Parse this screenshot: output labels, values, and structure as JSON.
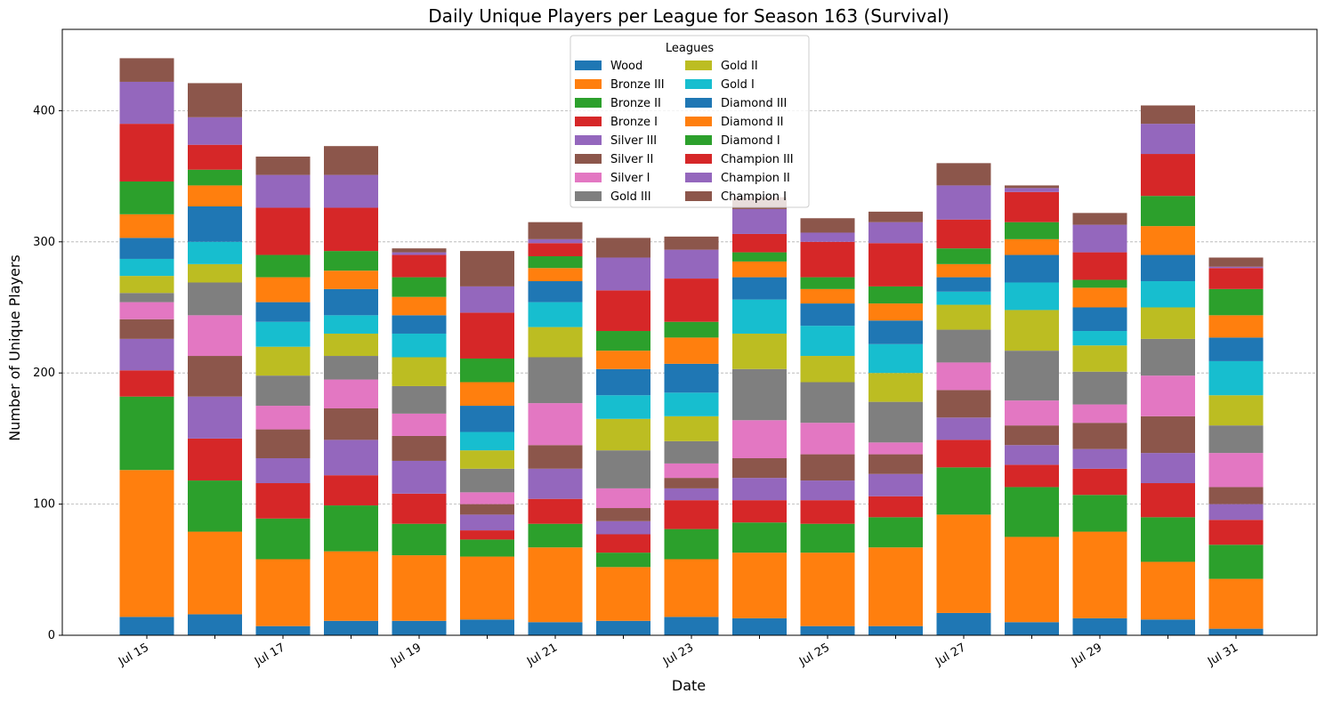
{
  "chart_data": {
    "type": "bar",
    "stacked": true,
    "title": "Daily Unique Players per League for Season 163 (Survival)",
    "xlabel": "Date",
    "ylabel": "Number of Unique Players",
    "ylim": [
      0,
      462
    ],
    "yticks": [
      0,
      100,
      200,
      300,
      400
    ],
    "grid": "y",
    "legend": {
      "title": "Leagues",
      "placement": "top-center",
      "columns": 2
    },
    "categories": [
      "Jul 15",
      "Jul 16",
      "Jul 17",
      "Jul 18",
      "Jul 19",
      "Jul 20",
      "Jul 21",
      "Jul 22",
      "Jul 23",
      "Jul 24",
      "Jul 25",
      "Jul 26",
      "Jul 27",
      "Jul 28",
      "Jul 29",
      "Jul 30",
      "Jul 31"
    ],
    "xtick_labels": [
      "Jul 15",
      "",
      "Jul 17",
      "",
      "Jul 19",
      "",
      "Jul 21",
      "",
      "Jul 23",
      "",
      "Jul 25",
      "",
      "Jul 27",
      "",
      "Jul 29",
      "",
      "Jul 31"
    ],
    "series": [
      {
        "name": "Wood",
        "color": "#1f77b4",
        "values": [
          14,
          16,
          7,
          11,
          11,
          12,
          10,
          11,
          14,
          13,
          7,
          7,
          17,
          10,
          13,
          12,
          5
        ]
      },
      {
        "name": "Bronze III",
        "color": "#ff7f0e",
        "values": [
          112,
          63,
          51,
          53,
          50,
          48,
          57,
          41,
          44,
          50,
          56,
          60,
          75,
          65,
          66,
          44,
          38
        ]
      },
      {
        "name": "Bronze II",
        "color": "#2ca02c",
        "values": [
          56,
          39,
          31,
          35,
          24,
          13,
          18,
          11,
          23,
          23,
          22,
          23,
          36,
          38,
          28,
          34,
          26
        ]
      },
      {
        "name": "Bronze I",
        "color": "#d62728",
        "values": [
          20,
          32,
          27,
          23,
          23,
          7,
          19,
          14,
          22,
          17,
          18,
          16,
          21,
          17,
          20,
          26,
          19
        ]
      },
      {
        "name": "Silver III",
        "color": "#9467bd",
        "values": [
          24,
          32,
          19,
          27,
          25,
          12,
          23,
          10,
          9,
          17,
          15,
          17,
          17,
          15,
          15,
          23,
          12
        ]
      },
      {
        "name": "Silver II",
        "color": "#8c564b",
        "values": [
          15,
          31,
          22,
          24,
          19,
          8,
          18,
          10,
          8,
          15,
          20,
          15,
          21,
          15,
          20,
          28,
          13
        ]
      },
      {
        "name": "Silver I",
        "color": "#e377c2",
        "values": [
          13,
          31,
          18,
          22,
          17,
          9,
          32,
          15,
          11,
          29,
          24,
          9,
          21,
          19,
          14,
          31,
          26
        ]
      },
      {
        "name": "Gold III",
        "color": "#7f7f7f",
        "values": [
          7,
          25,
          23,
          18,
          21,
          18,
          35,
          29,
          17,
          39,
          31,
          31,
          25,
          38,
          25,
          28,
          21
        ]
      },
      {
        "name": "Gold II",
        "color": "#bcbd22",
        "values": [
          13,
          14,
          22,
          17,
          22,
          14,
          23,
          24,
          19,
          27,
          20,
          22,
          19,
          31,
          20,
          24,
          23
        ]
      },
      {
        "name": "Gold I",
        "color": "#17becf",
        "values": [
          13,
          17,
          19,
          14,
          18,
          14,
          19,
          18,
          18,
          26,
          23,
          22,
          10,
          21,
          11,
          20,
          26
        ]
      },
      {
        "name": "Diamond III",
        "color": "#1f77b4",
        "values": [
          16,
          27,
          15,
          20,
          14,
          20,
          16,
          20,
          22,
          17,
          17,
          18,
          11,
          21,
          18,
          20,
          18
        ]
      },
      {
        "name": "Diamond II",
        "color": "#ff7f0e",
        "values": [
          18,
          16,
          19,
          14,
          14,
          18,
          10,
          14,
          20,
          12,
          11,
          13,
          10,
          12,
          15,
          22,
          17
        ]
      },
      {
        "name": "Diamond I",
        "color": "#2ca02c",
        "values": [
          25,
          12,
          17,
          15,
          15,
          18,
          9,
          15,
          12,
          7,
          9,
          13,
          12,
          13,
          6,
          23,
          20
        ]
      },
      {
        "name": "Champion III",
        "color": "#d62728",
        "values": [
          44,
          19,
          36,
          33,
          17,
          35,
          10,
          31,
          33,
          14,
          27,
          33,
          22,
          23,
          21,
          32,
          16
        ]
      },
      {
        "name": "Champion II",
        "color": "#9467bd",
        "values": [
          32,
          21,
          25,
          25,
          2,
          20,
          3,
          25,
          22,
          19,
          7,
          16,
          26,
          3,
          21,
          23,
          1
        ]
      },
      {
        "name": "Champion I",
        "color": "#8c564b",
        "values": [
          18,
          26,
          14,
          22,
          3,
          27,
          13,
          15,
          10,
          9,
          11,
          8,
          17,
          2,
          9,
          14,
          7
        ]
      }
    ]
  }
}
